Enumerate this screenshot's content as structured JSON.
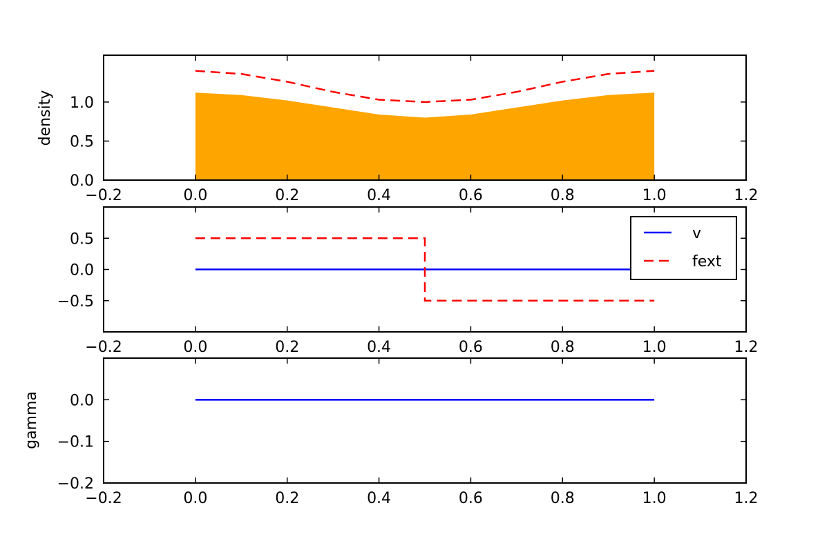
{
  "colors": {
    "fill": "#FFA500",
    "red": "#FF0000",
    "blue": "#0000FF",
    "axes": "#000000",
    "background": "#FFFFFF"
  },
  "chart_data": [
    {
      "type": "area",
      "title": "",
      "xlabel": "",
      "ylabel": "density",
      "xlim": [
        -0.2,
        1.2
      ],
      "ylim": [
        0.0,
        1.6
      ],
      "xticks": [
        "−0.2",
        "0.0",
        "0.2",
        "0.4",
        "0.6",
        "0.8",
        "1.0",
        "1.2"
      ],
      "yticks": [
        "0.0",
        "0.5",
        "1.0"
      ],
      "grid": false,
      "series": [
        {
          "kind": "fill",
          "color": "#FFA500",
          "x": [
            0.0,
            0.1,
            0.2,
            0.3,
            0.4,
            0.5,
            0.6,
            0.7,
            0.8,
            0.9,
            1.0
          ],
          "y": [
            1.12,
            1.09,
            1.02,
            0.93,
            0.84,
            0.8,
            0.84,
            0.93,
            1.02,
            1.09,
            1.12
          ]
        },
        {
          "kind": "line",
          "style": "dashed",
          "color": "#FF0000",
          "x": [
            0.0,
            0.1,
            0.2,
            0.3,
            0.4,
            0.5,
            0.6,
            0.7,
            0.8,
            0.9,
            1.0
          ],
          "y": [
            1.4,
            1.36,
            1.26,
            1.13,
            1.03,
            1.0,
            1.03,
            1.13,
            1.26,
            1.36,
            1.4
          ]
        }
      ]
    },
    {
      "type": "line",
      "title": "",
      "xlabel": "",
      "ylabel": "",
      "xlim": [
        -0.2,
        1.2
      ],
      "ylim": [
        -1.0,
        1.0
      ],
      "xticks": [
        "−0.2",
        "0.0",
        "0.2",
        "0.4",
        "0.6",
        "0.8",
        "1.0",
        "1.2"
      ],
      "yticks": [
        "−0.5",
        "0.0",
        "0.5"
      ],
      "grid": false,
      "legend": {
        "position": "top-right",
        "entries": [
          "v",
          "fext"
        ]
      },
      "series": [
        {
          "name": "v",
          "kind": "line",
          "style": "solid",
          "color": "#0000FF",
          "x": [
            0.0,
            1.0
          ],
          "y": [
            0.0,
            0.0
          ]
        },
        {
          "name": "fext",
          "kind": "line",
          "style": "dashed",
          "color": "#FF0000",
          "x": [
            0.0,
            0.5,
            0.5,
            1.0
          ],
          "y": [
            0.5,
            0.5,
            -0.5,
            -0.5
          ]
        }
      ]
    },
    {
      "type": "line",
      "title": "",
      "xlabel": "",
      "ylabel": "gamma",
      "xlim": [
        -0.2,
        1.2
      ],
      "ylim": [
        -0.2,
        0.1
      ],
      "xticks": [
        "−0.2",
        "0.0",
        "0.2",
        "0.4",
        "0.6",
        "0.8",
        "1.0",
        "1.2"
      ],
      "yticks": [
        "−0.2",
        "−0.1",
        "0.0"
      ],
      "grid": false,
      "series": [
        {
          "kind": "line",
          "style": "solid",
          "color": "#0000FF",
          "x": [
            0.0,
            1.0
          ],
          "y": [
            0.0,
            0.0
          ]
        }
      ]
    }
  ]
}
